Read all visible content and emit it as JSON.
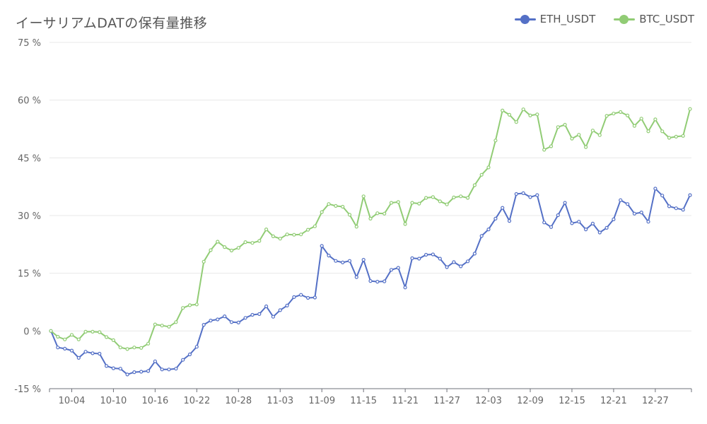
{
  "chart_data": {
    "type": "line",
    "title": "イーサリアムDATの保有量推移",
    "y_ticks": [
      "75 %",
      "60 %",
      "45 %",
      "30 %",
      "15 %",
      "0 %",
      "-15 %"
    ],
    "y_tick_values": [
      75,
      60,
      45,
      30,
      15,
      0,
      -15
    ],
    "ylim": [
      -15,
      75
    ],
    "x_ticks": [
      "10-04",
      "10-10",
      "10-16",
      "10-22",
      "10-28",
      "11-03",
      "11-09",
      "11-15",
      "11-21",
      "11-27",
      "12-03",
      "12-09",
      "12-15",
      "12-21",
      "12-27"
    ],
    "x_tick_index": [
      3,
      9,
      15,
      21,
      27,
      33,
      39,
      45,
      51,
      57,
      63,
      69,
      75,
      81,
      87
    ],
    "grid": "horizontal",
    "legend": "top-right",
    "series": [
      {
        "name": "ETH_USDT",
        "color": "#5470c6",
        "values": [
          0,
          -4.3,
          -4.6,
          -5.1,
          -7.0,
          -5.4,
          -5.8,
          -5.9,
          -9.1,
          -9.7,
          -9.8,
          -11.3,
          -10.7,
          -10.6,
          -10.4,
          -7.9,
          -10.0,
          -10.0,
          -9.8,
          -7.5,
          -6.1,
          -4.1,
          1.6,
          2.7,
          3.0,
          3.8,
          2.3,
          2.2,
          3.4,
          4.2,
          4.4,
          6.4,
          3.7,
          5.4,
          6.6,
          8.8,
          9.4,
          8.6,
          8.7,
          22.1,
          19.6,
          18.2,
          17.8,
          18.2,
          14.0,
          18.5,
          13.0,
          12.8,
          12.9,
          15.9,
          16.4,
          11.3,
          18.9,
          18.8,
          19.8,
          19.9,
          18.8,
          16.6,
          17.9,
          16.8,
          18.1,
          20.1,
          24.7,
          26.4,
          29.2,
          32.0,
          28.6,
          35.6,
          35.8,
          34.8,
          35.3,
          28.2,
          27.0,
          30.1,
          33.3,
          28.0,
          28.4,
          26.4,
          27.9,
          25.6,
          26.8,
          29.0,
          34.0,
          33.0,
          30.5,
          30.8,
          28.4,
          37.0,
          35.2,
          32.4,
          31.9,
          31.5,
          35.3
        ]
      },
      {
        "name": "BTC_USDT",
        "color": "#91cc75",
        "values": [
          0,
          -1.5,
          -2.2,
          -1.0,
          -2.2,
          -0.2,
          -0.2,
          -0.3,
          -1.6,
          -2.4,
          -4.3,
          -4.7,
          -4.3,
          -4.4,
          -3.3,
          1.7,
          1.4,
          1.1,
          2.3,
          6.0,
          6.7,
          6.9,
          18.0,
          21.0,
          23.2,
          21.8,
          20.9,
          21.6,
          23.1,
          22.9,
          23.4,
          26.4,
          24.6,
          24.0,
          25.1,
          25.0,
          25.1,
          26.3,
          27.2,
          30.9,
          33.0,
          32.5,
          32.3,
          30.2,
          27.1,
          35.0,
          29.2,
          30.6,
          30.5,
          33.3,
          33.5,
          27.8,
          33.3,
          33.1,
          34.6,
          34.8,
          33.7,
          32.9,
          34.7,
          35.0,
          34.6,
          37.9,
          40.6,
          42.5,
          49.5,
          57.3,
          56.2,
          54.3,
          57.6,
          56.0,
          56.3,
          47.1,
          48.0,
          53.0,
          53.6,
          50.0,
          51.0,
          47.8,
          52.1,
          50.9,
          55.9,
          56.5,
          56.9,
          56.0,
          53.3,
          55.2,
          51.9,
          55.0,
          51.9,
          50.2,
          50.5,
          50.7,
          57.7
        ]
      }
    ]
  }
}
